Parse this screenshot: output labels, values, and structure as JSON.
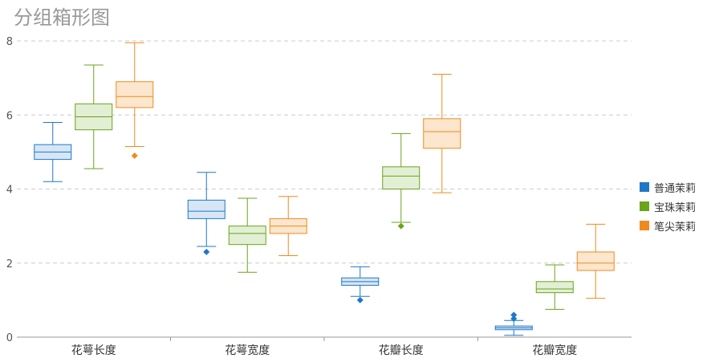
{
  "chart_data": {
    "type": "boxplot",
    "title": "分组箱形图",
    "categories": [
      "花萼长度",
      "花萼宽度",
      "花瓣长度",
      "花瓣宽度"
    ],
    "ylim": [
      0,
      8
    ],
    "yticks": [
      0,
      2,
      4,
      6,
      8
    ],
    "grid": true,
    "legend_position": "right",
    "series": [
      {
        "name": "普通茉莉",
        "color": "#1f77c8",
        "fill": "#d6e6f6",
        "boxes": [
          {
            "min": 4.2,
            "q1": 4.8,
            "median": 5.0,
            "q3": 5.2,
            "max": 5.8,
            "outliers": []
          },
          {
            "min": 2.45,
            "q1": 3.2,
            "median": 3.4,
            "q3": 3.7,
            "max": 4.45,
            "outliers": [
              2.3
            ]
          },
          {
            "min": 1.1,
            "q1": 1.4,
            "median": 1.5,
            "q3": 1.6,
            "max": 1.9,
            "outliers": [
              1.0
            ]
          },
          {
            "min": 0.05,
            "q1": 0.2,
            "median": 0.25,
            "q3": 0.3,
            "max": 0.45,
            "outliers": [
              0.5,
              0.6
            ]
          }
        ]
      },
      {
        "name": "宝珠茉莉",
        "color": "#6aa41c",
        "fill": "#e2efd4",
        "boxes": [
          {
            "min": 4.55,
            "q1": 5.6,
            "median": 5.95,
            "q3": 6.3,
            "max": 7.35,
            "outliers": []
          },
          {
            "min": 1.75,
            "q1": 2.5,
            "median": 2.8,
            "q3": 3.0,
            "max": 3.75,
            "outliers": []
          },
          {
            "min": 3.1,
            "q1": 4.0,
            "median": 4.35,
            "q3": 4.6,
            "max": 5.5,
            "outliers": [
              3.0
            ]
          },
          {
            "min": 0.75,
            "q1": 1.2,
            "median": 1.3,
            "q3": 1.5,
            "max": 1.95,
            "outliers": []
          }
        ]
      },
      {
        "name": "笔尖茉莉",
        "color": "#ef8b1c",
        "fill": "#fce6cd",
        "boxes": [
          {
            "min": 5.15,
            "q1": 6.2,
            "median": 6.5,
            "q3": 6.9,
            "max": 7.95,
            "outliers": [
              4.9
            ]
          },
          {
            "min": 2.2,
            "q1": 2.8,
            "median": 3.0,
            "q3": 3.2,
            "max": 3.8,
            "outliers": []
          },
          {
            "min": 3.9,
            "q1": 5.1,
            "median": 5.55,
            "q3": 5.9,
            "max": 7.1,
            "outliers": []
          },
          {
            "min": 1.05,
            "q1": 1.8,
            "median": 2.0,
            "q3": 2.3,
            "max": 3.05,
            "outliers": []
          }
        ]
      }
    ]
  }
}
